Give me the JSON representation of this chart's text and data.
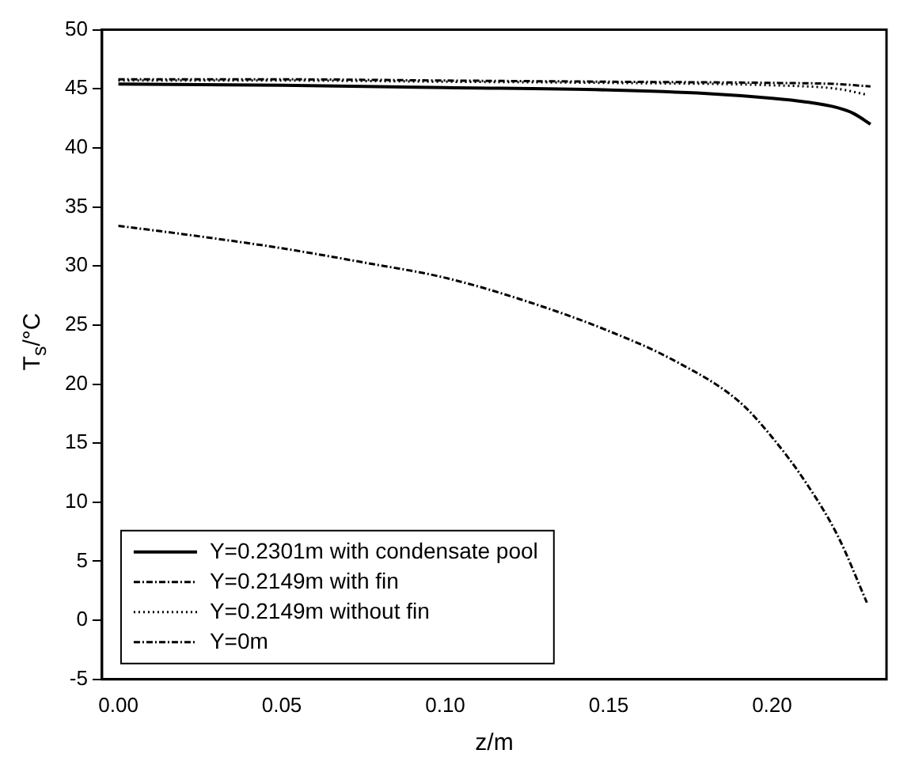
{
  "chart_data": {
    "type": "line",
    "xlabel": "z/m",
    "ylabel": "T$_{s}$/°C",
    "xlim": [
      -0.005,
      0.235
    ],
    "xticks": [
      {
        "value": 0,
        "label": "0.00"
      },
      {
        "value": 0.05,
        "label": "0.05"
      },
      {
        "value": 0.1,
        "label": "0.10"
      },
      {
        "value": 0.15,
        "label": "0.15"
      },
      {
        "value": 0.2,
        "label": "0.20"
      }
    ],
    "ylim": [
      -5,
      50
    ],
    "yticks": [
      -5,
      0,
      5,
      10,
      15,
      20,
      25,
      30,
      35,
      40,
      45,
      50
    ],
    "grid": false,
    "legend": "bottom left",
    "marker": "none",
    "series": [
      {
        "name": "Y=0.2301m with condensate pool",
        "color": "#000000",
        "line_style": "solid",
        "x": [
          0,
          0.05,
          0.1,
          0.15,
          0.18,
          0.2,
          0.21,
          0.22,
          0.225,
          0.2301
        ],
        "values": [
          45.4,
          45.3,
          45.1,
          44.9,
          44.6,
          44.2,
          43.9,
          43.4,
          42.9,
          42
        ]
      },
      {
        "name": "Y=0.2149m with fin",
        "color": "#000000",
        "line_style": "dashed",
        "x": [
          0,
          0.05,
          0.1,
          0.15,
          0.2,
          0.22,
          0.2301
        ],
        "values": [
          45.8,
          45.8,
          45.7,
          45.6,
          45.5,
          45.4,
          45.2
        ]
      },
      {
        "name": "Y=0.2149m without fin",
        "color": "#000000",
        "line_style": "dotted",
        "x": [
          0,
          0.05,
          0.1,
          0.15,
          0.2,
          0.22,
          0.229
        ],
        "values": [
          45.7,
          45.7,
          45.6,
          45.5,
          45.3,
          45,
          44.5
        ]
      },
      {
        "name": "Y=0m",
        "color": "#000000",
        "line_style": "dashed",
        "x": [
          0,
          0.025,
          0.05,
          0.075,
          0.1,
          0.125,
          0.15,
          0.17,
          0.19,
          0.2,
          0.21,
          0.22,
          0.229
        ],
        "values": [
          33.4,
          32.5,
          31.5,
          30.3,
          29,
          27,
          24.5,
          22,
          18.5,
          15.5,
          11.8,
          7.2,
          1.5
        ]
      }
    ]
  }
}
